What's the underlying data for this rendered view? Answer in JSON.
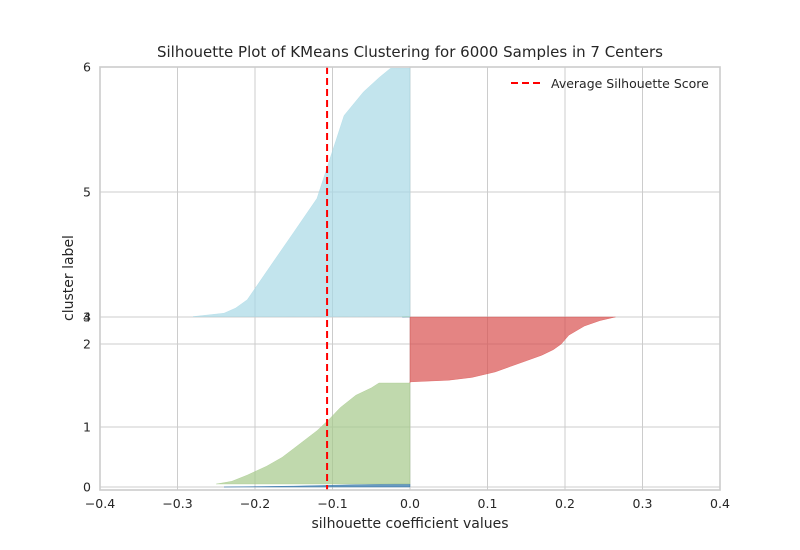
{
  "chart_data": {
    "type": "area",
    "title": "Silhouette Plot of KMeans Clustering for 6000 Samples in 7 Centers",
    "xlabel": "silhouette coefficient values",
    "ylabel": "cluster label",
    "xlim": [
      -0.4,
      0.4
    ],
    "xticks": [
      -0.4,
      -0.3,
      -0.2,
      -0.1,
      0.0,
      0.1,
      0.2,
      0.3,
      0.4
    ],
    "xtick_labels": [
      "−0.4",
      "−0.3",
      "−0.2",
      "−0.1",
      "0.0",
      "0.1",
      "0.2",
      "0.3",
      "0.4"
    ],
    "ytick_labels": [
      "0",
      "1",
      "2",
      "3",
      "4",
      "5",
      "6"
    ],
    "grid": true,
    "legend_position": "top-right",
    "average_silhouette_score": -0.107,
    "average_line": {
      "label": "Average Silhouette Score",
      "color": "#ff0000",
      "style": "dashed"
    },
    "series": [
      {
        "cluster": "0",
        "color": "#2a6fa8",
        "samples_band": [
          0,
          0.05
        ],
        "profile": [
          [
            0.0,
            -0.24
          ],
          [
            0.3,
            -0.15
          ],
          [
            0.7,
            -0.08
          ],
          [
            1.0,
            -0.02
          ]
        ]
      },
      {
        "cluster": "1",
        "color": "#a5c98a",
        "samples_band": [
          0.05,
          1.53
        ],
        "profile": [
          [
            0.0,
            -0.25
          ],
          [
            0.03,
            -0.23
          ],
          [
            0.1,
            -0.21
          ],
          [
            0.2,
            -0.185
          ],
          [
            0.3,
            -0.165
          ],
          [
            0.4,
            -0.15
          ],
          [
            0.5,
            -0.135
          ],
          [
            0.6,
            -0.12
          ],
          [
            0.7,
            -0.105
          ],
          [
            0.8,
            -0.09
          ],
          [
            0.9,
            -0.07
          ],
          [
            0.96,
            -0.05
          ],
          [
            1.0,
            -0.04
          ]
        ]
      },
      {
        "cluster": "2",
        "color": "#d9504e",
        "samples_band": [
          1.53,
          2.2
        ],
        "profile": [
          [
            0.0,
            0.0
          ],
          [
            0.02,
            0.0
          ],
          [
            0.05,
            0.05
          ],
          [
            0.1,
            0.08
          ],
          [
            0.2,
            0.11
          ],
          [
            0.3,
            0.13
          ],
          [
            0.4,
            0.15
          ],
          [
            0.5,
            0.17
          ],
          [
            0.6,
            0.185
          ],
          [
            0.7,
            0.195
          ],
          [
            0.8,
            0.205
          ],
          [
            0.9,
            0.225
          ],
          [
            0.96,
            0.245
          ],
          [
            1.0,
            0.265
          ]
        ]
      },
      {
        "cluster": "3",
        "color": "#2a6fa8",
        "samples_band": [
          2.2,
          2.205
        ],
        "profile": [
          [
            0.0,
            -0.01
          ],
          [
            1.0,
            -0.005
          ]
        ]
      },
      {
        "cluster": "4",
        "color": "#a5c98a",
        "samples_band": [
          2.205,
          2.21
        ],
        "profile": [
          [
            0.0,
            -0.01
          ],
          [
            1.0,
            -0.005
          ]
        ]
      },
      {
        "cluster": "5",
        "color": "#a8d8e5",
        "samples_band": [
          2.21,
          5.99
        ],
        "profile": [
          [
            0.0,
            -0.28
          ],
          [
            0.02,
            -0.24
          ],
          [
            0.05,
            -0.225
          ],
          [
            0.1,
            -0.21
          ],
          [
            0.2,
            -0.195
          ],
          [
            0.3,
            -0.18
          ],
          [
            0.4,
            -0.165
          ],
          [
            0.5,
            -0.15
          ],
          [
            0.6,
            -0.135
          ],
          [
            0.7,
            -0.12
          ],
          [
            0.8,
            -0.105
          ],
          [
            0.85,
            -0.095
          ],
          [
            0.9,
            -0.085
          ],
          [
            0.95,
            -0.06
          ],
          [
            0.98,
            -0.04
          ],
          [
            1.0,
            -0.025
          ]
        ]
      }
    ]
  }
}
